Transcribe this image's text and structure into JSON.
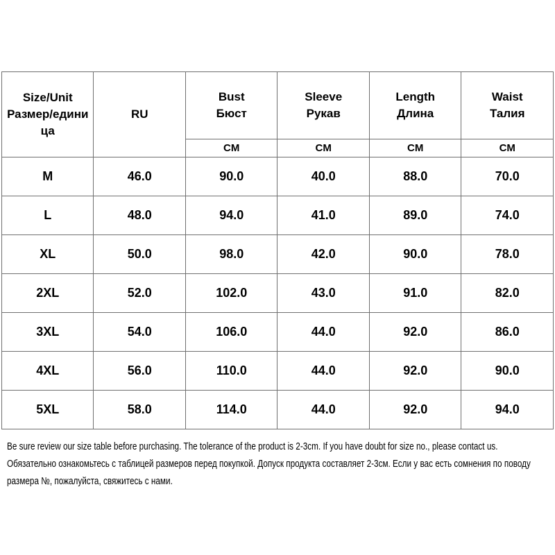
{
  "colors": {
    "background": "#ffffff",
    "text": "#000000",
    "border": "#6f6f6f"
  },
  "chart_data": {
    "type": "table",
    "title": "",
    "layout": {
      "grid": true,
      "header_rows": 2,
      "unit_row_span_columns": "Bust/Sleeve/Length/Waist only"
    },
    "header": {
      "size_unit": [
        "Size/Unit",
        "Размер/единица"
      ],
      "ru_label": "RU",
      "measures": [
        {
          "en": "Bust",
          "ru": "Бюст",
          "unit": "CM"
        },
        {
          "en": "Sleeve",
          "ru": "Рукав",
          "unit": "CM"
        },
        {
          "en": "Length",
          "ru": "Длина",
          "unit": "CM"
        },
        {
          "en": "Waist",
          "ru": "Талия",
          "unit": "CM"
        }
      ]
    },
    "columns": [
      "Size/Unit Размер/единица",
      "RU",
      "Bust Бюст (CM)",
      "Sleeve Рукав (CM)",
      "Length Длина (CM)",
      "Waist Талия (CM)"
    ],
    "rows": [
      {
        "size": "M",
        "values": [
          "46.0",
          "90.0",
          "40.0",
          "88.0",
          "70.0"
        ]
      },
      {
        "size": "L",
        "values": [
          "48.0",
          "94.0",
          "41.0",
          "89.0",
          "74.0"
        ]
      },
      {
        "size": "XL",
        "values": [
          "50.0",
          "98.0",
          "42.0",
          "90.0",
          "78.0"
        ]
      },
      {
        "size": "2XL",
        "values": [
          "52.0",
          "102.0",
          "43.0",
          "91.0",
          "82.0"
        ]
      },
      {
        "size": "3XL",
        "values": [
          "54.0",
          "106.0",
          "44.0",
          "92.0",
          "86.0"
        ]
      },
      {
        "size": "4XL",
        "values": [
          "56.0",
          "110.0",
          "44.0",
          "92.0",
          "90.0"
        ]
      },
      {
        "size": "5XL",
        "values": [
          "58.0",
          "114.0",
          "44.0",
          "92.0",
          "94.0"
        ]
      }
    ]
  },
  "footer": {
    "note_en": "Be sure review our size table before purchasing. The tolerance of the product is 2-3cm. If you have doubt for size no., please contact us.",
    "note_ru": "Обязательно ознакомьтесь с таблицей размеров перед покупкой. Допуск продукта составляет 2-3см. Если у вас есть сомнения по поводу размера №, пожалуйста, свяжитесь с нами."
  }
}
